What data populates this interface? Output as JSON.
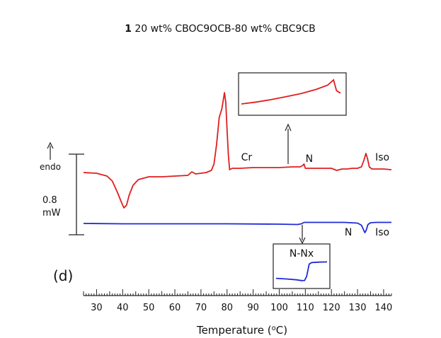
{
  "chart_data": {
    "type": "line",
    "title_bold": "1",
    "title_rest": " 20 wt% CBOC9OCB-80 wt% CBC9CB",
    "xlabel_main": "Temperature (",
    "xlabel_sup": "o",
    "xlabel_end": "C)",
    "xlim": [
      25,
      143
    ],
    "x_ticks": [
      30,
      40,
      50,
      60,
      70,
      80,
      90,
      100,
      110,
      120,
      130,
      140
    ],
    "panel_label": "(d)",
    "scale_bar": {
      "label_value": "0.8",
      "label_unit": "mW",
      "heat_flow_span": 0.8
    },
    "endo_label": "endo",
    "series": [
      {
        "color": "#e01e1e",
        "x": [
          25,
          30,
          34,
          36,
          38,
          39.5,
          40.5,
          41.5,
          42.5,
          44,
          46,
          50,
          55,
          60,
          65,
          66.5,
          68,
          72,
          74,
          75,
          76,
          77,
          78,
          79,
          79.5,
          80,
          80.5,
          81,
          82,
          85,
          90,
          95,
          100,
          105,
          108,
          109,
          109.5,
          110,
          112,
          115,
          120,
          122,
          124,
          126,
          128,
          130,
          131.5,
          132.5,
          133.2,
          133.8,
          134.5,
          135.5,
          137,
          140,
          143
        ],
        "y": [
          0.0,
          -0.01,
          -0.05,
          -0.12,
          -0.28,
          -0.42,
          -0.5,
          -0.46,
          -0.32,
          -0.18,
          -0.1,
          -0.06,
          -0.06,
          -0.05,
          -0.04,
          0.01,
          -0.02,
          0.0,
          0.03,
          0.12,
          0.4,
          0.78,
          0.9,
          1.13,
          1.0,
          0.6,
          0.25,
          0.04,
          0.06,
          0.06,
          0.07,
          0.07,
          0.07,
          0.08,
          0.08,
          0.1,
          0.12,
          0.06,
          0.06,
          0.06,
          0.06,
          0.03,
          0.05,
          0.05,
          0.06,
          0.06,
          0.08,
          0.18,
          0.27,
          0.2,
          0.08,
          0.05,
          0.05,
          0.05,
          0.04
        ],
        "labels": [
          {
            "text": "Cr",
            "x": 87.5,
            "y": 0.17
          },
          {
            "text": "N",
            "x": 111.5,
            "y": 0.15
          },
          {
            "text": "Iso",
            "x": 139.5,
            "y": 0.17
          }
        ]
      },
      {
        "color": "#1f2bd6",
        "x": [
          25,
          40,
          60,
          80,
          100,
          107,
          108.5,
          109.5,
          115,
          125,
          130,
          131.5,
          132.3,
          132.8,
          133.3,
          134,
          135,
          137,
          140,
          143
        ],
        "y": [
          -0.72,
          -0.725,
          -0.725,
          -0.725,
          -0.73,
          -0.735,
          -0.725,
          -0.705,
          -0.705,
          -0.705,
          -0.715,
          -0.745,
          -0.81,
          -0.85,
          -0.82,
          -0.735,
          -0.71,
          -0.705,
          -0.705,
          -0.705
        ],
        "labels": [
          {
            "text": "N",
            "x": 126.5,
            "y": -0.89
          },
          {
            "text": "Iso",
            "x": 139.5,
            "y": -0.89
          }
        ]
      }
    ],
    "insets": [
      {
        "name": "inset-cr-n",
        "color": "#e01e1e",
        "x": [
          0,
          0.15,
          0.3,
          0.45,
          0.6,
          0.75,
          0.87,
          0.93,
          0.96,
          1.0
        ],
        "y": [
          0.0,
          0.08,
          0.18,
          0.3,
          0.43,
          0.6,
          0.78,
          1.0,
          0.55,
          0.45
        ]
      },
      {
        "name": "inset-n-nx",
        "title": "N-Nx",
        "color": "#1f2bd6",
        "x": [
          0,
          0.2,
          0.4,
          0.5,
          0.56,
          0.6,
          0.65,
          0.7,
          0.85,
          1.0
        ],
        "y": [
          0.15,
          0.12,
          0.08,
          0.04,
          0.05,
          0.25,
          0.85,
          0.92,
          0.94,
          0.95
        ]
      }
    ]
  }
}
